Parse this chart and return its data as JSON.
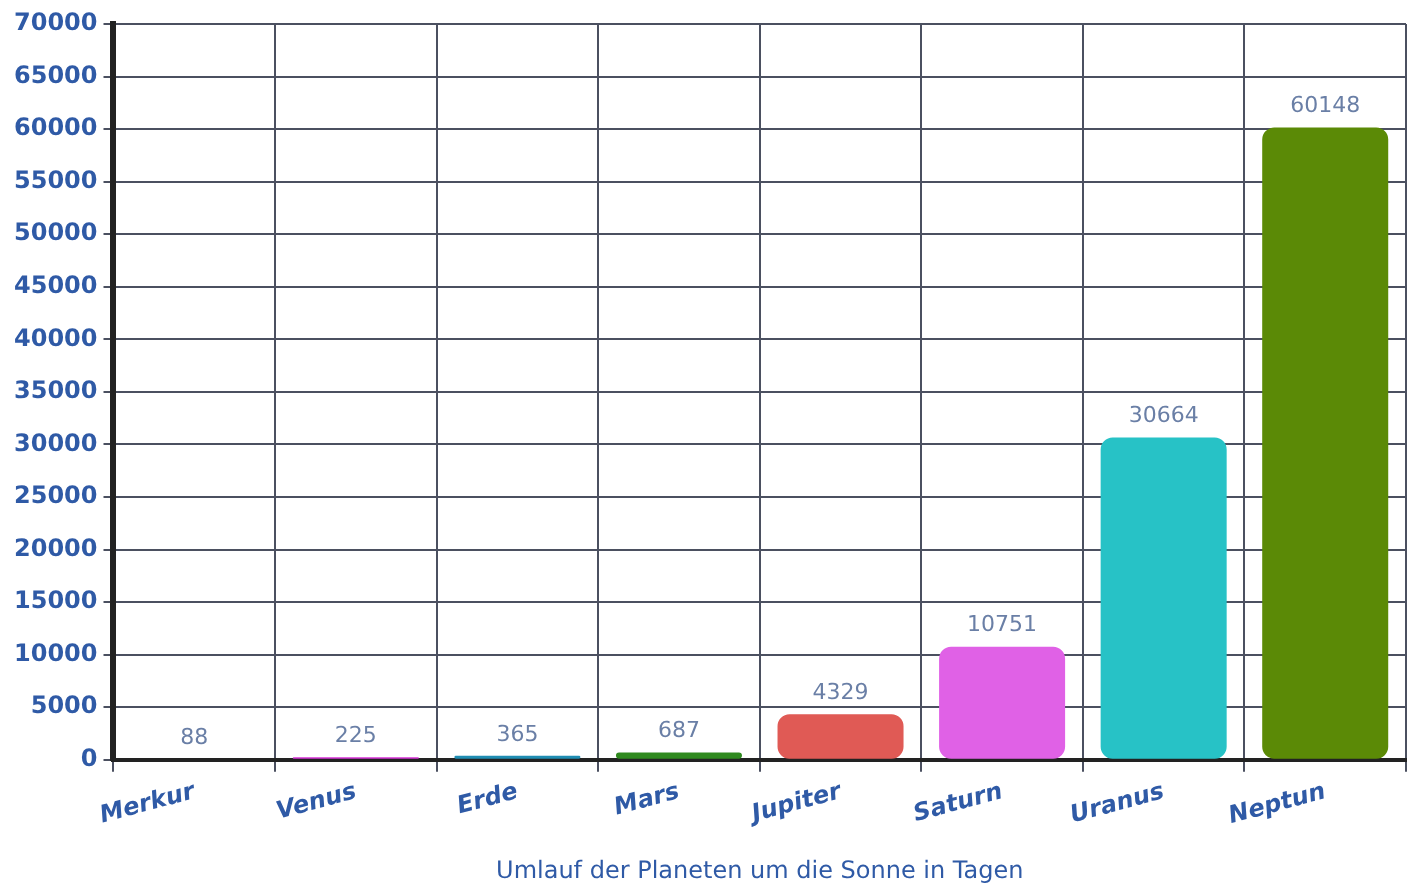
{
  "chart_data": {
    "type": "bar",
    "xlabel": "Umlauf der Planeten um die Sonne in Tagen",
    "categories": [
      "Merkur",
      "Venus",
      "Erde",
      "Mars",
      "Jupiter",
      "Saturn",
      "Uranus",
      "Neptun"
    ],
    "values": [
      88,
      225,
      365,
      687,
      4329,
      10751,
      30664,
      60148
    ],
    "colors": [
      "#d9552e",
      "#d633d6",
      "#1f8db3",
      "#2f8a1f",
      "#e05a55",
      "#e061e6",
      "#27c2c6",
      "#5b8a06"
    ],
    "ylim": [
      0,
      70000
    ],
    "yticks": [
      0,
      5000,
      10000,
      15000,
      20000,
      25000,
      30000,
      35000,
      40000,
      45000,
      50000,
      55000,
      60000,
      65000,
      70000
    ],
    "grid": true,
    "data_labels": true
  }
}
